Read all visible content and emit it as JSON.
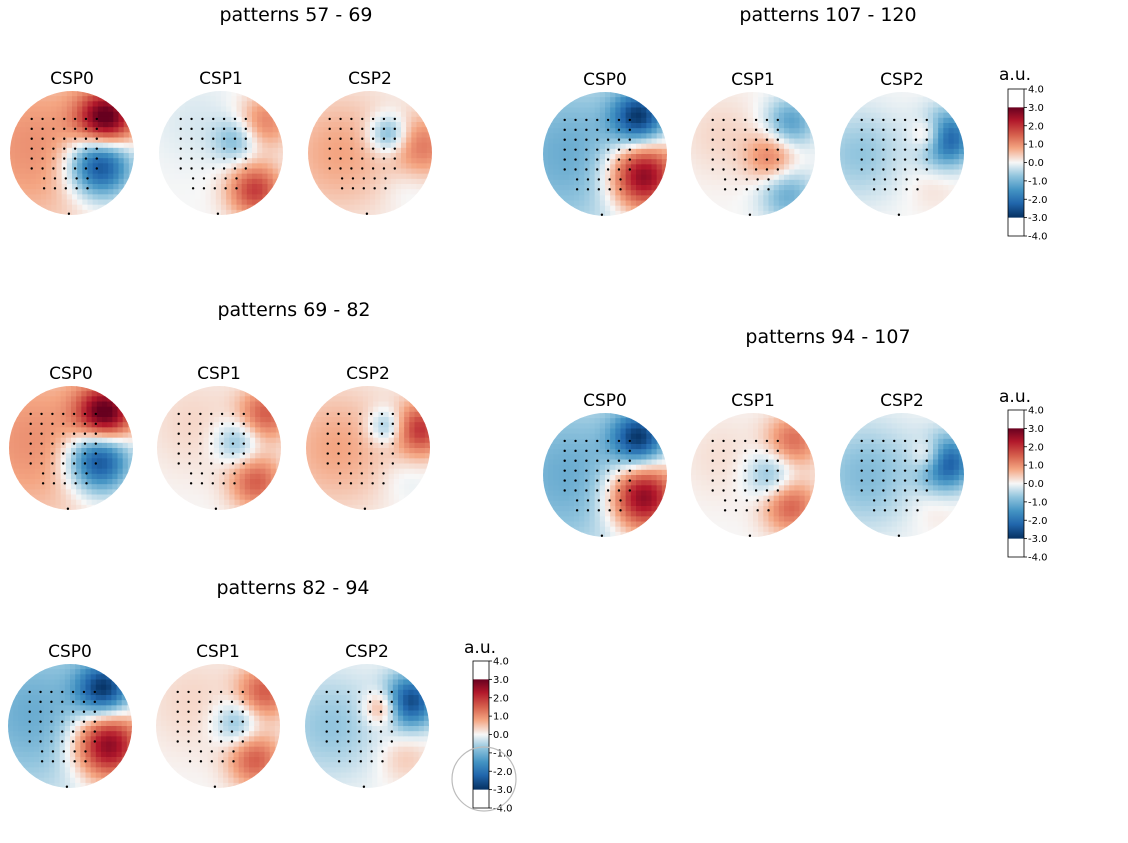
{
  "chart_data": {
    "type": "heatmap",
    "colormap": "RdBu_r",
    "colorbar": {
      "label": "a.u.",
      "ticks": [
        "4.0",
        "3.0",
        "2.0",
        "1.0",
        "0.0",
        "-1.0",
        "-2.0",
        "-3.0",
        "-4.0"
      ],
      "vmin": -4,
      "vmax": 4
    },
    "panels": [
      {
        "title": "patterns 57 - 69",
        "components": [
          {
            "name": "CSP0",
            "blobs": [
              [
                0.55,
                -0.55,
                4.0,
                0.32
              ],
              [
                0.45,
                0.2,
                -4.0,
                0.35
              ],
              [
                -0.6,
                -0.1,
                1.3,
                0.9
              ]
            ]
          },
          {
            "name": "CSP1",
            "blobs": [
              [
                0.7,
                -0.5,
                1.5,
                0.3
              ],
              [
                0.25,
                -0.2,
                -1.2,
                0.25
              ],
              [
                0.55,
                0.6,
                2.5,
                0.3
              ],
              [
                -0.4,
                -0.5,
                -0.3,
                0.5
              ]
            ]
          },
          {
            "name": "CSP2",
            "blobs": [
              [
                0.3,
                -0.3,
                -1.8,
                0.22
              ],
              [
                0.85,
                -0.1,
                1.5,
                0.35
              ],
              [
                -0.5,
                0.0,
                1.0,
                0.7
              ],
              [
                0.6,
                0.5,
                -0.3,
                0.3
              ]
            ]
          }
        ]
      },
      {
        "title": "patterns 107 - 120",
        "components": [
          {
            "name": "CSP0",
            "blobs": [
              [
                0.55,
                -0.6,
                -3.5,
                0.3
              ],
              [
                0.6,
                0.35,
                4.0,
                0.38
              ],
              [
                -0.6,
                0.0,
                -1.5,
                0.9
              ]
            ]
          },
          {
            "name": "CSP1",
            "blobs": [
              [
                0.6,
                -0.5,
                -1.8,
                0.28
              ],
              [
                0.3,
                0.05,
                1.5,
                0.28
              ],
              [
                0.55,
                0.65,
                -1.5,
                0.3
              ],
              [
                -0.5,
                -0.3,
                0.4,
                0.5
              ]
            ]
          },
          {
            "name": "CSP2",
            "blobs": [
              [
                0.7,
                -0.25,
                -3.5,
                0.3
              ],
              [
                0.45,
                -0.3,
                2.0,
                0.2
              ],
              [
                -0.7,
                0.0,
                -1.0,
                0.5
              ],
              [
                0.5,
                0.5,
                0.3,
                0.3
              ]
            ]
          }
        ]
      },
      {
        "title": "patterns 69 - 82",
        "components": [
          {
            "name": "CSP0",
            "blobs": [
              [
                0.55,
                -0.55,
                4.0,
                0.32
              ],
              [
                0.45,
                0.2,
                -4.0,
                0.35
              ],
              [
                -0.6,
                -0.1,
                1.3,
                0.9
              ]
            ]
          },
          {
            "name": "CSP1",
            "blobs": [
              [
                0.75,
                -0.55,
                2.0,
                0.3
              ],
              [
                0.3,
                -0.1,
                -1.3,
                0.25
              ],
              [
                0.6,
                0.55,
                2.0,
                0.3
              ],
              [
                -0.4,
                -0.4,
                0.4,
                0.6
              ]
            ]
          },
          {
            "name": "CSP2",
            "blobs": [
              [
                0.85,
                -0.3,
                2.5,
                0.3
              ],
              [
                0.3,
                -0.35,
                -1.5,
                0.2
              ],
              [
                -0.5,
                0.0,
                1.0,
                0.7
              ],
              [
                0.6,
                0.5,
                -0.3,
                0.3
              ]
            ]
          }
        ]
      },
      {
        "title": "patterns 94 - 107",
        "components": [
          {
            "name": "CSP0",
            "blobs": [
              [
                0.55,
                -0.6,
                -3.5,
                0.3
              ],
              [
                0.6,
                0.35,
                4.0,
                0.38
              ],
              [
                -0.6,
                0.0,
                -1.5,
                0.9
              ]
            ]
          },
          {
            "name": "CSP1",
            "blobs": [
              [
                0.65,
                -0.55,
                1.8,
                0.3
              ],
              [
                0.3,
                0.0,
                -1.3,
                0.28
              ],
              [
                0.6,
                0.5,
                2.0,
                0.3
              ],
              [
                -0.5,
                -0.3,
                0.3,
                0.5
              ]
            ]
          },
          {
            "name": "CSP2",
            "blobs": [
              [
                0.7,
                -0.2,
                -3.5,
                0.3
              ],
              [
                0.45,
                -0.3,
                1.8,
                0.2
              ],
              [
                -0.6,
                0.0,
                -1.2,
                0.6
              ],
              [
                0.5,
                0.5,
                0.3,
                0.3
              ]
            ]
          }
        ]
      },
      {
        "title": "patterns 82 - 94",
        "components": [
          {
            "name": "CSP0",
            "blobs": [
              [
                0.55,
                -0.6,
                -3.5,
                0.3
              ],
              [
                0.6,
                0.3,
                4.0,
                0.38
              ],
              [
                -0.6,
                -0.2,
                -1.5,
                0.9
              ]
            ]
          },
          {
            "name": "CSP1",
            "blobs": [
              [
                0.75,
                -0.55,
                2.0,
                0.3
              ],
              [
                0.3,
                -0.05,
                -1.3,
                0.25
              ],
              [
                0.6,
                0.55,
                2.0,
                0.3
              ],
              [
                -0.4,
                -0.4,
                0.4,
                0.6
              ]
            ]
          },
          {
            "name": "CSP2",
            "blobs": [
              [
                0.7,
                -0.4,
                -3.5,
                0.3
              ],
              [
                0.25,
                -0.3,
                1.8,
                0.2
              ],
              [
                -0.6,
                0.0,
                -1.0,
                0.6
              ],
              [
                0.6,
                0.5,
                0.6,
                0.3
              ]
            ]
          }
        ]
      }
    ]
  }
}
